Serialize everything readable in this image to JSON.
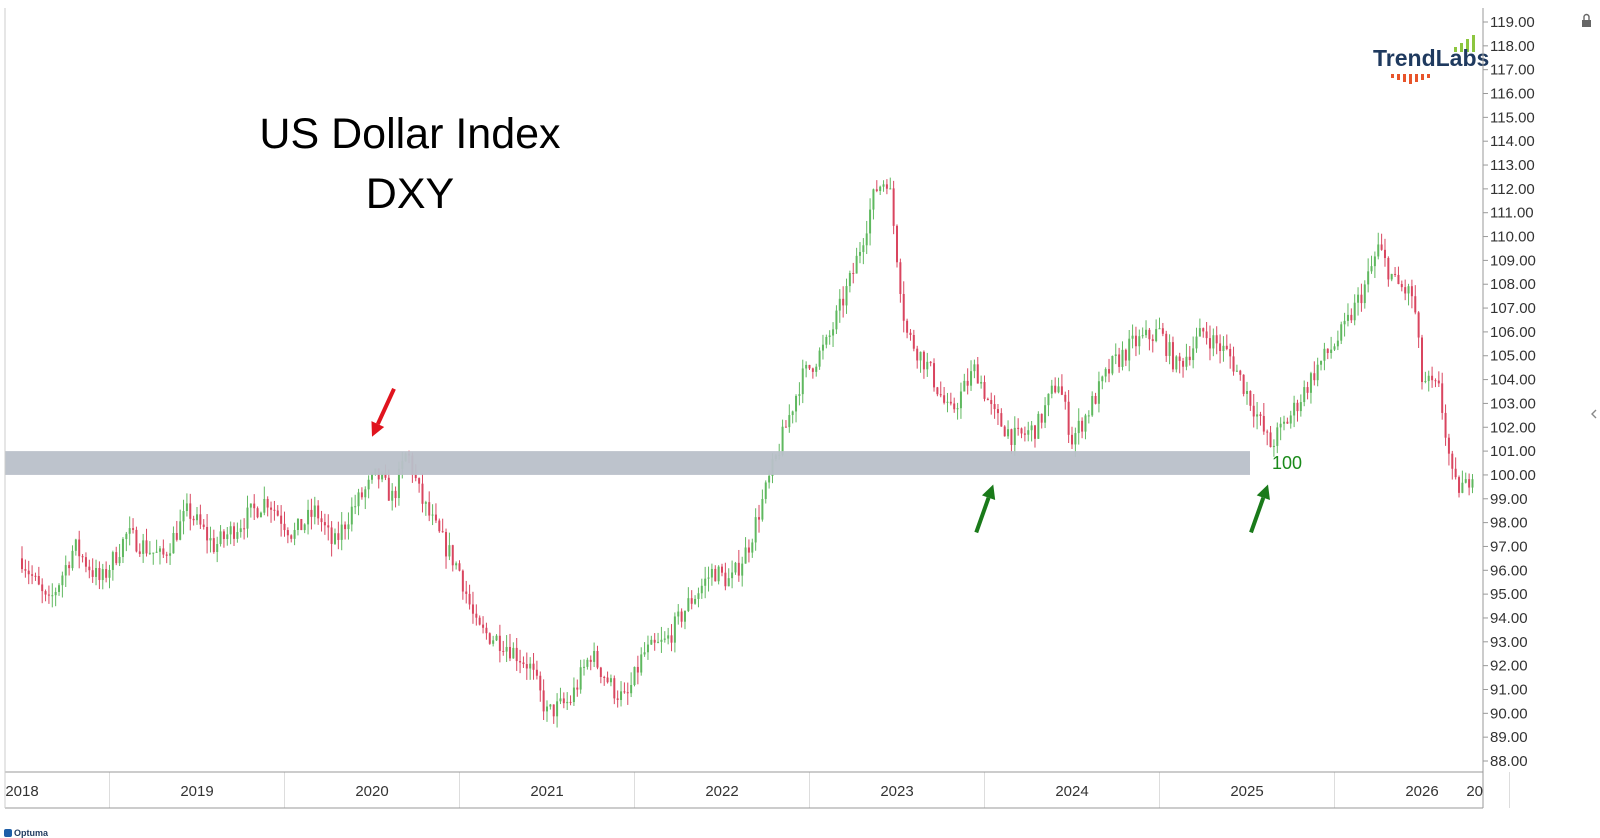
{
  "chart_data": {
    "type": "candlestick",
    "title": "US Dollar Index",
    "subtitle": "DXY",
    "y_axis": {
      "min": 88,
      "max": 119,
      "step": 1,
      "position": "right",
      "decimals": 2
    },
    "x_axis": {
      "labels": [
        "2018",
        "2019",
        "2020",
        "2021",
        "2022",
        "2023",
        "2024",
        "2025",
        "2026",
        "20"
      ]
    },
    "support_zone": {
      "low": 100,
      "high": 101,
      "label": "100",
      "color": "#b9c0c9"
    },
    "anchors": [
      {
        "date": "2018.0",
        "value": 96.5
      },
      {
        "date": "2018.15",
        "value": 94.5
      },
      {
        "date": "2018.3",
        "value": 97.0
      },
      {
        "date": "2018.45",
        "value": 95.5
      },
      {
        "date": "2018.6",
        "value": 97.5
      },
      {
        "date": "2018.8",
        "value": 96.5
      },
      {
        "date": "2018.95",
        "value": 98.5
      },
      {
        "date": "2019.1",
        "value": 97.0
      },
      {
        "date": "2019.25",
        "value": 98.0
      },
      {
        "date": "2019.4",
        "value": 99.0
      },
      {
        "date": "2019.55",
        "value": 97.5
      },
      {
        "date": "2019.68",
        "value": 98.5
      },
      {
        "date": "2019.78",
        "value": 97.0
      },
      {
        "date": "2019.88",
        "value": 98.5
      },
      {
        "date": "2020.03",
        "value": 100.0
      },
      {
        "date": "2020.12",
        "value": 99.0
      },
      {
        "date": "2020.2",
        "value": 101.0
      },
      {
        "date": "2020.28",
        "value": 99.0
      },
      {
        "date": "2020.38",
        "value": 97.5
      },
      {
        "date": "2020.5",
        "value": 96.0
      },
      {
        "date": "2020.6",
        "value": 93.5
      },
      {
        "date": "2020.75",
        "value": 93.0
      },
      {
        "date": "2020.9",
        "value": 92.0
      },
      {
        "date": "2021.0",
        "value": 90.0
      },
      {
        "date": "2021.13",
        "value": 90.5
      },
      {
        "date": "2021.25",
        "value": 92.5
      },
      {
        "date": "2021.38",
        "value": 91.0
      },
      {
        "date": "2021.45",
        "value": 90.5
      },
      {
        "date": "2021.55",
        "value": 92.5
      },
      {
        "date": "2021.68",
        "value": 93.0
      },
      {
        "date": "2021.8",
        "value": 94.5
      },
      {
        "date": "2021.95",
        "value": 96.0
      },
      {
        "date": "2022.05",
        "value": 95.5
      },
      {
        "date": "2022.15",
        "value": 97.0
      },
      {
        "date": "2022.3",
        "value": 100.5
      },
      {
        "date": "2022.45",
        "value": 104.0
      },
      {
        "date": "2022.6",
        "value": 105.5
      },
      {
        "date": "2022.75",
        "value": 108.5
      },
      {
        "date": "2022.88",
        "value": 112.0
      },
      {
        "date": "2022.95",
        "value": 112.5
      },
      {
        "date": "2023.05",
        "value": 106.0
      },
      {
        "date": "2023.18",
        "value": 104.5
      },
      {
        "date": "2023.3",
        "value": 102.5
      },
      {
        "date": "2023.45",
        "value": 104.5
      },
      {
        "date": "2023.55",
        "value": 102.5
      },
      {
        "date": "2023.68",
        "value": 101.5
      },
      {
        "date": "2023.8",
        "value": 102.0
      },
      {
        "date": "2023.92",
        "value": 104.0
      },
      {
        "date": "2024.0",
        "value": 101.5
      },
      {
        "date": "2024.08",
        "value": 102.5
      },
      {
        "date": "2024.22",
        "value": 104.5
      },
      {
        "date": "2024.35",
        "value": 105.5
      },
      {
        "date": "2024.5",
        "value": 106.0
      },
      {
        "date": "2024.6",
        "value": 104.5
      },
      {
        "date": "2024.75",
        "value": 106.0
      },
      {
        "date": "2024.9",
        "value": 105.0
      },
      {
        "date": "2025.03",
        "value": 103.0
      },
      {
        "date": "2025.13",
        "value": 101.2
      },
      {
        "date": "2025.25",
        "value": 102.5
      },
      {
        "date": "2025.4",
        "value": 104.5
      },
      {
        "date": "2025.55",
        "value": 106.0
      },
      {
        "date": "2025.68",
        "value": 108.0
      },
      {
        "date": "2025.75",
        "value": 109.5
      },
      {
        "date": "2025.85",
        "value": 108.0
      },
      {
        "date": "2025.95",
        "value": 107.5
      },
      {
        "date": "2026.0",
        "value": 104.0
      },
      {
        "date": "2026.1",
        "value": 103.5
      },
      {
        "date": "2026.18",
        "value": 99.5
      },
      {
        "date": "2026.25",
        "value": 99.5
      },
      {
        "date": "2026.3",
        "value": 100.5
      }
    ],
    "annotations": [
      {
        "type": "arrow",
        "color": "#e0141e",
        "direction": "down",
        "date": "2020.0",
        "value": 101.6
      },
      {
        "type": "arrow",
        "color": "#1a7a1a",
        "direction": "up",
        "date": "2023.55",
        "value": 99.6
      },
      {
        "type": "arrow",
        "color": "#1a7a1a",
        "direction": "up",
        "date": "2025.12",
        "value": 99.6
      }
    ],
    "colors": {
      "up": "#5fb85f",
      "down": "#d9455f",
      "grid": "#dddddd",
      "axis": "#999999"
    }
  },
  "branding": {
    "logo": "TrendLabs",
    "footer_logo": "Optuma"
  }
}
